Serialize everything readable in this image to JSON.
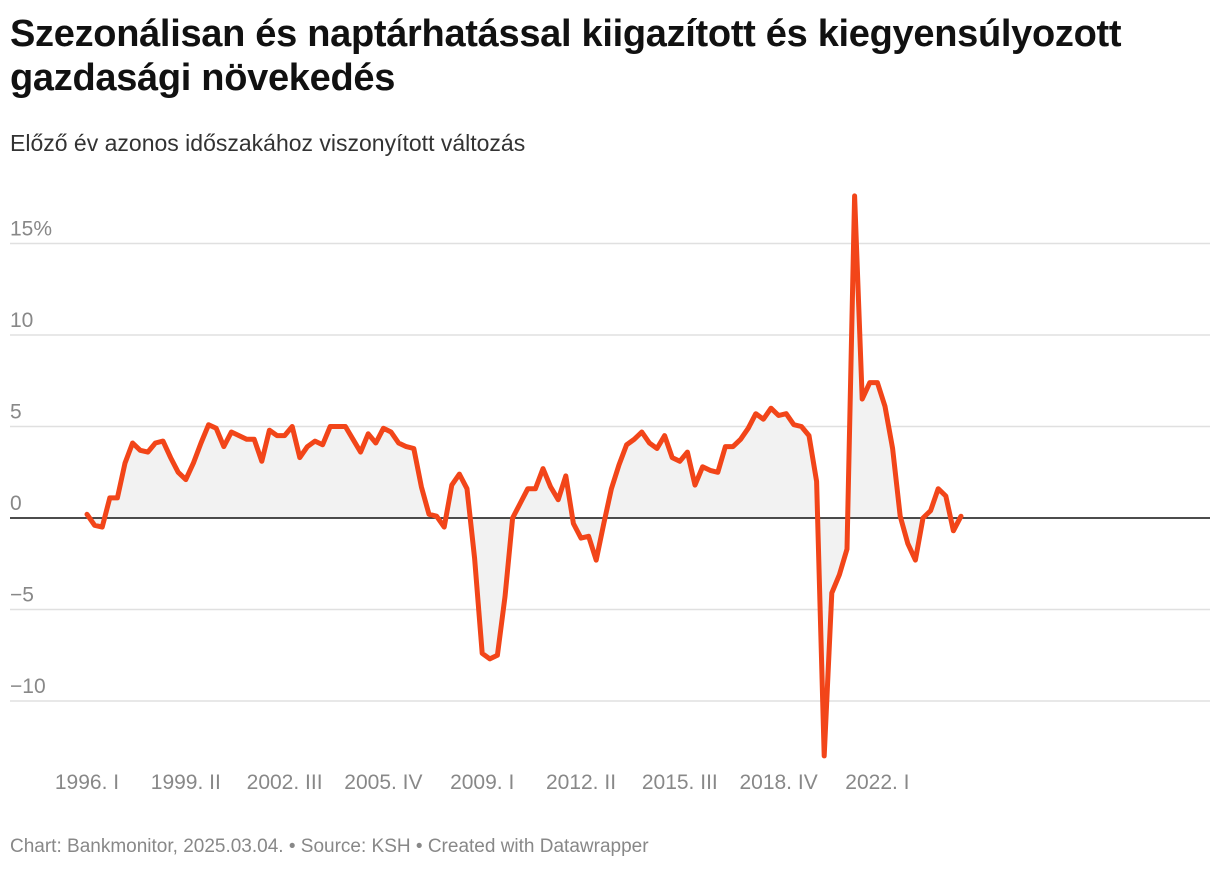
{
  "title": "Szezonálisan és naptárhatással kiigazított és kiegyensúlyozott gazdasági növekedés",
  "subtitle": "Előző év azonos időszakához viszonyított változás",
  "footer": {
    "chart_by": "Chart: Bankmonitor, 2025.03.04.",
    "separator": " • ",
    "source": "Source: KSH",
    "created": "Created with Datawrapper"
  },
  "colors": {
    "line": "#f24519",
    "area": "#f2f2f2",
    "zero_line": "#111111",
    "grid": "#e0e0e0",
    "tick_text": "#888888"
  },
  "chart_data": {
    "type": "area",
    "title": "Szezonálisan és naptárhatással kiigazított és kiegyensúlyozott gazdasági növekedés",
    "subtitle": "Előző év azonos időszakához viszonyított változás",
    "xlabel": "",
    "ylabel": "",
    "x_start": "1996. I",
    "x_ticks": [
      "1996. I",
      "1999. II",
      "2002. III",
      "2005. IV",
      "2009. I",
      "2012. II",
      "2015. III",
      "2018. IV",
      "2022. I"
    ],
    "y_ticks": [
      15,
      10,
      5,
      0,
      -5,
      -10
    ],
    "y_tick_labels": [
      "15%",
      "10",
      "5",
      "0",
      "−5",
      "−10"
    ],
    "ylim": [
      -13,
      17.6
    ],
    "grid": true,
    "legend": "none",
    "series": [
      {
        "values": [
          0.2,
          -0.4,
          -0.5,
          1.1,
          1.1,
          3.0,
          4.1,
          3.7,
          3.6,
          4.1,
          4.2,
          3.3,
          2.5,
          2.1,
          3.0,
          4.1,
          5.1,
          4.9,
          3.9,
          4.7,
          4.5,
          4.3,
          4.3,
          3.1,
          4.8,
          4.5,
          4.5,
          5.0,
          3.3,
          3.9,
          4.2,
          4.0,
          5.0,
          5.0,
          5.0,
          4.3,
          3.6,
          4.6,
          4.1,
          4.9,
          4.7,
          4.1,
          3.9,
          3.8,
          1.7,
          0.2,
          0.1,
          -0.5,
          1.8,
          2.4,
          1.6,
          -2.2,
          -7.4,
          -7.7,
          -7.5,
          -4.3,
          0.0,
          0.8,
          1.6,
          1.6,
          2.7,
          1.7,
          1.0,
          2.3,
          -0.3,
          -1.1,
          -1.0,
          -2.3,
          -0.3,
          1.6,
          2.9,
          4.0,
          4.3,
          4.7,
          4.1,
          3.8,
          4.5,
          3.3,
          3.1,
          3.6,
          1.8,
          2.8,
          2.6,
          2.5,
          3.9,
          3.9,
          4.3,
          4.9,
          5.7,
          5.4,
          6.0,
          5.6,
          5.7,
          5.1,
          5.0,
          4.5,
          2.0,
          -13.0,
          -4.1,
          -3.1,
          -1.7,
          17.6,
          6.5,
          7.4,
          7.4,
          6.1,
          3.8,
          0.1,
          -1.4,
          -2.3,
          0.0,
          0.4,
          1.6,
          1.2,
          -0.7,
          0.1
        ]
      }
    ]
  }
}
